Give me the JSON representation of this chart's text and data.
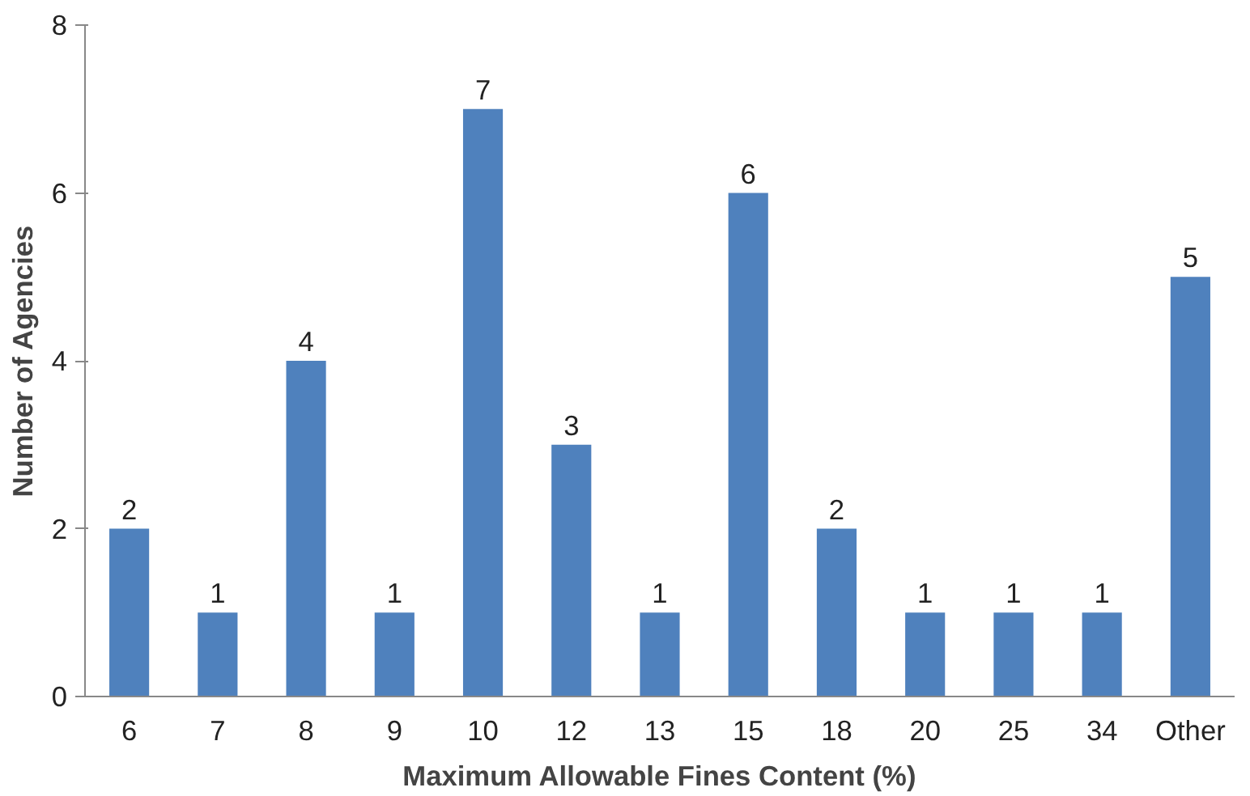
{
  "chart_data": {
    "type": "bar",
    "xlabel": "Maximum Allowable Fines Content (%)",
    "ylabel": "Number of Agencies",
    "categories": [
      "6",
      "7",
      "8",
      "9",
      "10",
      "12",
      "13",
      "15",
      "18",
      "20",
      "25",
      "34",
      "Other"
    ],
    "values": [
      2,
      1,
      4,
      1,
      7,
      3,
      1,
      6,
      2,
      1,
      1,
      1,
      5
    ],
    "color": "#4f81bd",
    "ylim": [
      0,
      8
    ],
    "yticks": [
      0,
      2,
      4,
      6,
      8
    ],
    "grid": false,
    "data_labels": true
  }
}
